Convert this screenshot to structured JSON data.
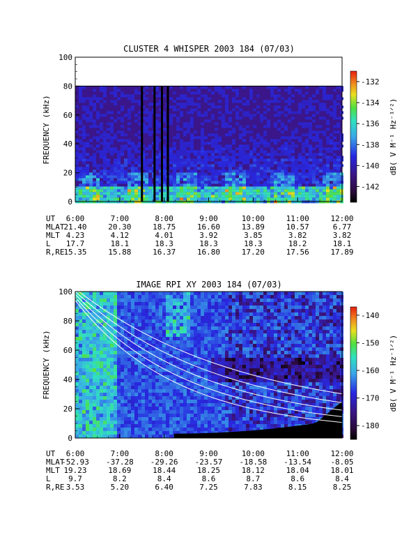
{
  "chart_data": [
    {
      "type": "heatmap",
      "title": "CLUSTER 4 WHISPER 2003 184 (07/03)",
      "ylabel": "FREQUENCY (kHz)",
      "ylim": [
        0,
        100
      ],
      "yticks": [
        "0",
        "20",
        "40",
        "60",
        "80",
        "100"
      ],
      "colorbar_label": "dB( V M⁻¹ Hz⁻¹ᐟ²)",
      "colorbar_ticks": [
        "-132",
        "-134",
        "-136",
        "-138",
        "-140",
        "-142"
      ],
      "colorbar_range": [
        -143.5,
        -131
      ],
      "data_ceiling_khz": 80,
      "gaps_ut": [
        "7:30",
        "7:47",
        "7:57",
        "8:05"
      ],
      "ephemeris": {
        "labels": [
          "UT",
          "MLAT",
          "MLT",
          "L",
          "R,RE"
        ],
        "columns": [
          [
            "6:00",
            "21.40",
            "4.23",
            "17.7",
            "15.35"
          ],
          [
            "7:00",
            "20.30",
            "4.12",
            "18.1",
            "15.88"
          ],
          [
            "8:00",
            "18.75",
            "4.01",
            "18.3",
            "16.37"
          ],
          [
            "9:00",
            "16.60",
            "3.92",
            "18.3",
            "16.80"
          ],
          [
            "10:00",
            "13.89",
            "3.85",
            "18.3",
            "17.20"
          ],
          [
            "11:00",
            "10.57",
            "3.82",
            "18.2",
            "17.56"
          ],
          [
            "12:00",
            "6.77",
            "3.82",
            "18.1",
            "17.89"
          ]
        ]
      }
    },
    {
      "type": "heatmap",
      "title": "IMAGE RPI XY 2003 184 (07/03)",
      "ylabel": "FREQUENCY (kHz)",
      "ylim": [
        0,
        100
      ],
      "yticks": [
        "0",
        "20",
        "40",
        "60",
        "80",
        "100"
      ],
      "colorbar_label": "dB( V M⁻¹ Hz⁻¹ᐟ²)",
      "colorbar_ticks": [
        "-140",
        "-150",
        "-160",
        "-170",
        "-180"
      ],
      "colorbar_range": [
        -185,
        -137
      ],
      "ephemeris": {
        "labels": [
          "UT",
          "MLAT",
          "MLT",
          "L",
          "R,RE"
        ],
        "columns": [
          [
            "6:00",
            "-52.93",
            "19.23",
            "9.7",
            "3.53"
          ],
          [
            "7:00",
            "-37.28",
            "18.69",
            "8.2",
            "5.20"
          ],
          [
            "8:00",
            "-29.26",
            "18.44",
            "8.4",
            "6.40"
          ],
          [
            "9:00",
            "-23.57",
            "18.25",
            "8.6",
            "7.25"
          ],
          [
            "10:00",
            "-18.58",
            "18.12",
            "8.7",
            "7.83"
          ],
          [
            "11:00",
            "-13.54",
            "18.04",
            "8.6",
            "8.15"
          ],
          [
            "12:00",
            "-8.05",
            "18.01",
            "8.4",
            "8.25"
          ]
        ]
      }
    }
  ]
}
